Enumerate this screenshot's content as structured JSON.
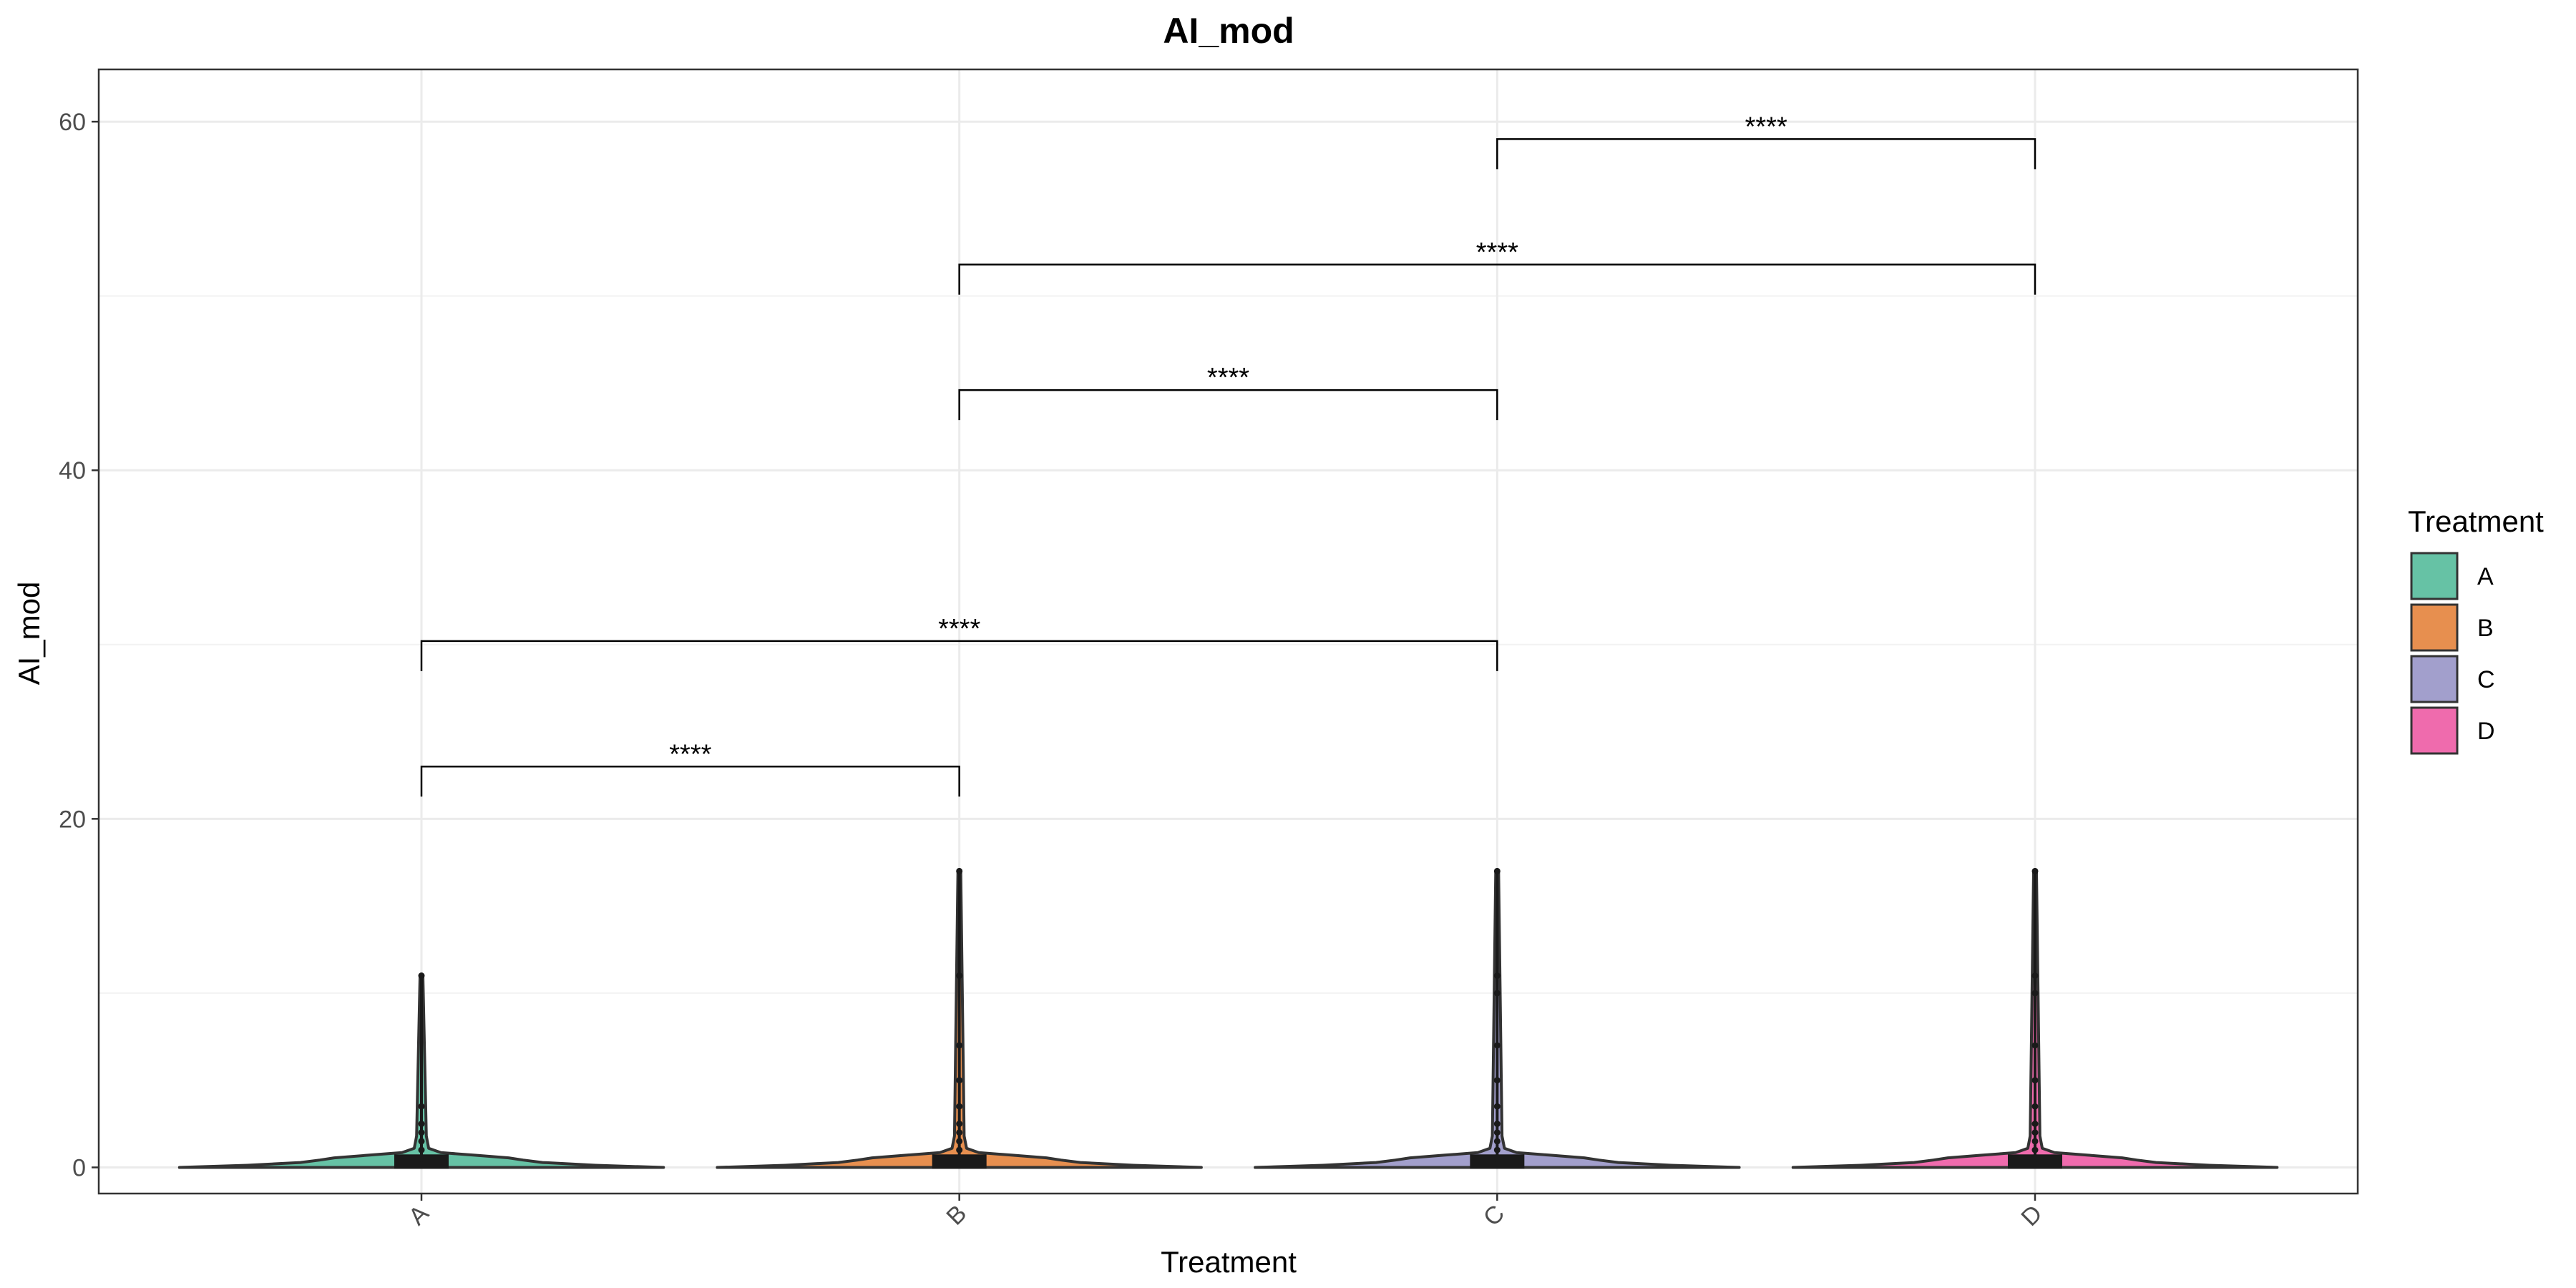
{
  "chart_data": {
    "type": "violin",
    "title": "AI_mod",
    "xlabel": "Treatment",
    "ylabel": "AI_mod",
    "categories": [
      "A",
      "B",
      "C",
      "D"
    ],
    "ylim": [
      -1.5,
      63
    ],
    "yticks": [
      0,
      20,
      40,
      60
    ],
    "grid": true,
    "colors": {
      "A": "#66c2a5",
      "B": "#e78f4f",
      "C": "#a29fcc",
      "D": "#ef6bad"
    },
    "series": [
      {
        "category": "A",
        "violin_max": 11,
        "violin_peak": 0.5,
        "median": 0,
        "q1": 0,
        "q3": 0.5,
        "points": [
          0.5,
          1,
          1.5,
          2,
          2.5,
          3.5,
          11
        ]
      },
      {
        "category": "B",
        "violin_max": 17,
        "violin_peak": 0.4,
        "median": 0,
        "q1": 0,
        "q3": 0.5,
        "points": [
          0.5,
          1,
          1.5,
          2,
          2.5,
          3.5,
          5,
          7,
          11,
          17
        ]
      },
      {
        "category": "C",
        "violin_max": 17,
        "violin_peak": 0.4,
        "median": 0,
        "q1": 0,
        "q3": 0.5,
        "points": [
          0.5,
          1,
          1.5,
          2,
          2.5,
          3.5,
          5,
          7,
          10,
          11,
          17
        ]
      },
      {
        "category": "D",
        "violin_max": 17,
        "violin_peak": 0.4,
        "median": 0,
        "q1": 0,
        "q3": 0.5,
        "points": [
          0.5,
          1,
          1.5,
          2,
          2.5,
          3.5,
          5,
          7,
          10,
          11,
          17
        ]
      }
    ],
    "comparisons": [
      {
        "from": "A",
        "to": "B",
        "y": 23,
        "label": "****"
      },
      {
        "from": "A",
        "to": "C",
        "y": 30.2,
        "label": "****"
      },
      {
        "from": "B",
        "to": "C",
        "y": 44.6,
        "label": "****"
      },
      {
        "from": "B",
        "to": "D",
        "y": 51.8,
        "label": "****"
      },
      {
        "from": "C",
        "to": "D",
        "y": 59,
        "label": "****"
      }
    ],
    "legend": {
      "title": "Treatment",
      "position": "right",
      "items": [
        "A",
        "B",
        "C",
        "D"
      ]
    }
  }
}
